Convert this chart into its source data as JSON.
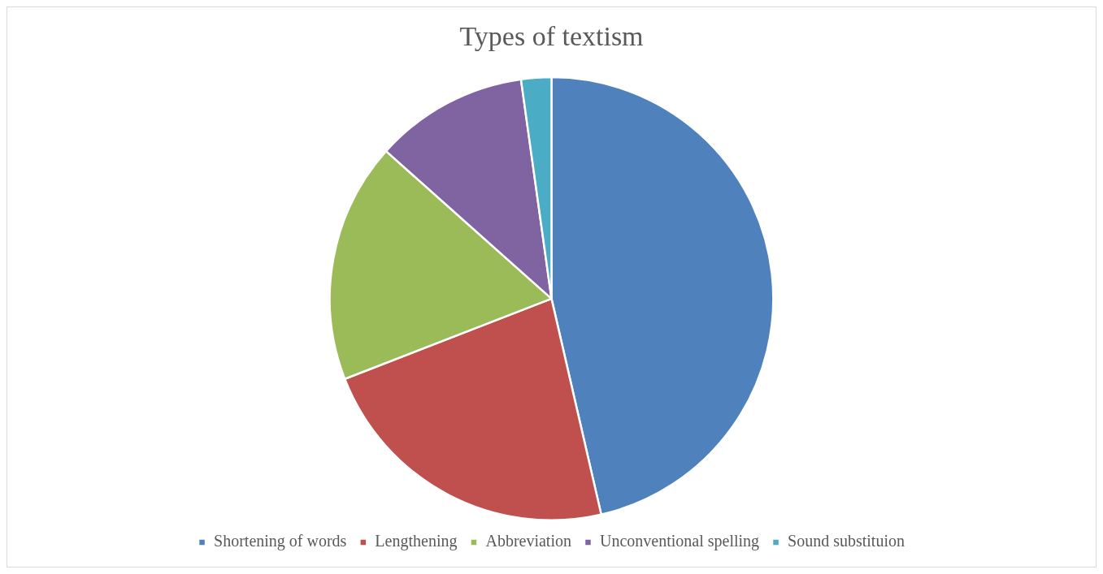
{
  "chart_data": {
    "type": "pie",
    "title": "Types of textism",
    "categories": [
      "Shortening of words",
      "Lengthening",
      "Abbreviation",
      "Unconventional spelling",
      "Sound substituion"
    ],
    "values": [
      46.4,
      22.7,
      17.5,
      11.2,
      2.2
    ],
    "colors": [
      "#4f81bd",
      "#c0504d",
      "#9bbb59",
      "#8064a2",
      "#4bacc6"
    ],
    "legend": "bottom"
  }
}
